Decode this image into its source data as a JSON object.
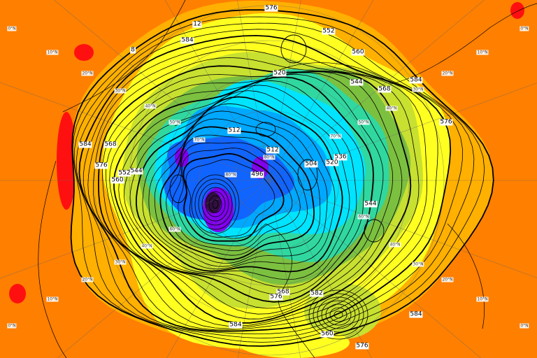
{
  "map": {
    "projection": "north-polar-stereographic",
    "field": "500 hPa geopotential height (dam)",
    "colors": {
      "background": "#ff7f00",
      "warm": "#ffb000",
      "yellow": "#ffff20",
      "light_green": "#c8e030",
      "green": "#7cc040",
      "teal": "#30d8a0",
      "cyan": "#00e4ff",
      "light_blue": "#00a8ff",
      "blue": "#1064ff",
      "purple": "#8000ee",
      "dark": "#301040",
      "hot": "#ff1010",
      "contour": "#000000"
    },
    "contour_labels": [
      "576",
      "552",
      "584",
      "12",
      "8",
      "560",
      "520",
      "544",
      "568",
      "584",
      "576",
      "512",
      "512",
      "536",
      "520",
      "504",
      "496",
      "568",
      "584",
      "576",
      "544",
      "552",
      "560",
      "544",
      "568",
      "582",
      "560",
      "576",
      "584",
      "584",
      "576"
    ],
    "latitude_labels": [
      "0°N",
      "0°N",
      "0°N",
      "0°N",
      "10°N",
      "10°N",
      "10°N",
      "10°N",
      "20°N",
      "20°N",
      "20°N",
      "20°N",
      "30°N",
      "30°N",
      "30°N",
      "30°N",
      "40°N",
      "40°N",
      "40°N",
      "40°N",
      "50°N",
      "50°N",
      "60°N",
      "60°N",
      "70°N",
      "70°N",
      "80°N",
      "80°N"
    ]
  }
}
